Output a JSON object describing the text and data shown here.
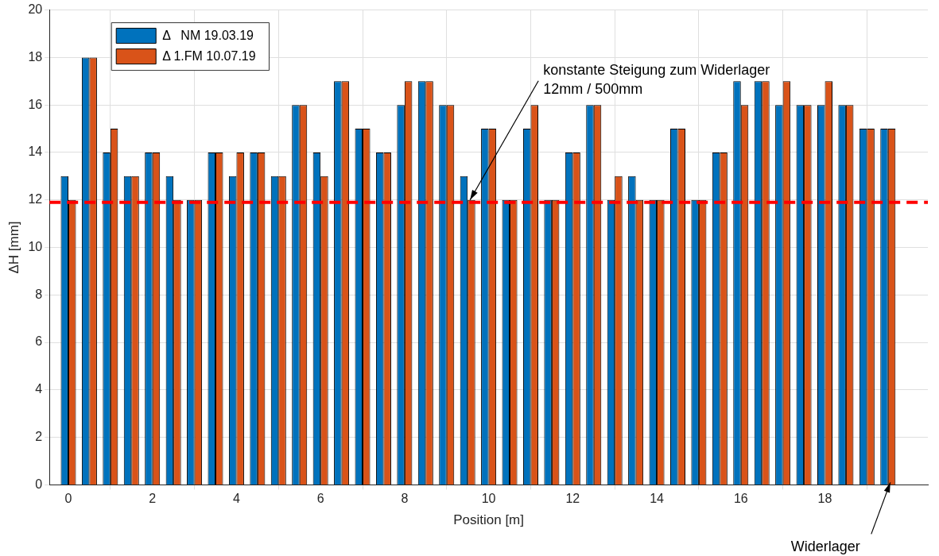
{
  "chart_data": {
    "type": "bar",
    "xlabel": "Position [m]",
    "ylabel": "ΔH [mm]",
    "x": [
      0,
      0.5,
      1,
      1.5,
      2,
      2.5,
      3,
      3.5,
      4,
      4.5,
      5,
      5.5,
      6,
      6.5,
      7,
      7.5,
      8,
      8.5,
      9,
      9.5,
      10,
      10.5,
      11,
      11.5,
      12,
      12.5,
      13,
      13.5,
      14,
      14.5,
      15,
      15.5,
      16,
      16.5,
      17,
      17.5,
      18,
      18.5,
      19,
      19.5
    ],
    "series": [
      {
        "name": "Δ   NM 19.03.19",
        "color": "#0072bd",
        "values": [
          13,
          18,
          14,
          13,
          14,
          13,
          12,
          14,
          13,
          14,
          13,
          16,
          14,
          17,
          15,
          14,
          16,
          17,
          16,
          13,
          15,
          12,
          15,
          12,
          14,
          16,
          12,
          13,
          12,
          15,
          12,
          14,
          17,
          17,
          16,
          16,
          16,
          16,
          15,
          15
        ]
      },
      {
        "name": "Δ 1.FM 10.07.19",
        "color": "#d95319",
        "values": [
          12,
          18,
          15,
          13,
          14,
          12,
          12,
          14,
          14,
          14,
          13,
          16,
          13,
          17,
          15,
          14,
          17,
          17,
          16,
          12,
          15,
          12,
          16,
          12,
          14,
          16,
          13,
          12,
          12,
          15,
          12,
          14,
          16,
          17,
          17,
          16,
          17,
          16,
          15,
          15
        ]
      }
    ],
    "xlim": [
      -0.45,
      20.45
    ],
    "xticks": [
      0,
      2,
      4,
      6,
      8,
      10,
      12,
      14,
      16,
      18
    ],
    "ylim": [
      0,
      20
    ],
    "yticks": [
      0,
      2,
      4,
      6,
      8,
      10,
      12,
      14,
      16,
      18,
      20
    ],
    "grid": true,
    "legend": "top left",
    "ref_lines": [
      {
        "axis": "y",
        "value": 11.9,
        "color": "#ff0000",
        "line_style": "dashed"
      }
    ],
    "annotations": [
      {
        "text": "konstante Steigung zum Widerlager\n12mm / 500mm",
        "x": 9.5,
        "y": 11.9
      },
      {
        "text": "Widerlager",
        "x": 19.5,
        "y": 0
      }
    ]
  }
}
